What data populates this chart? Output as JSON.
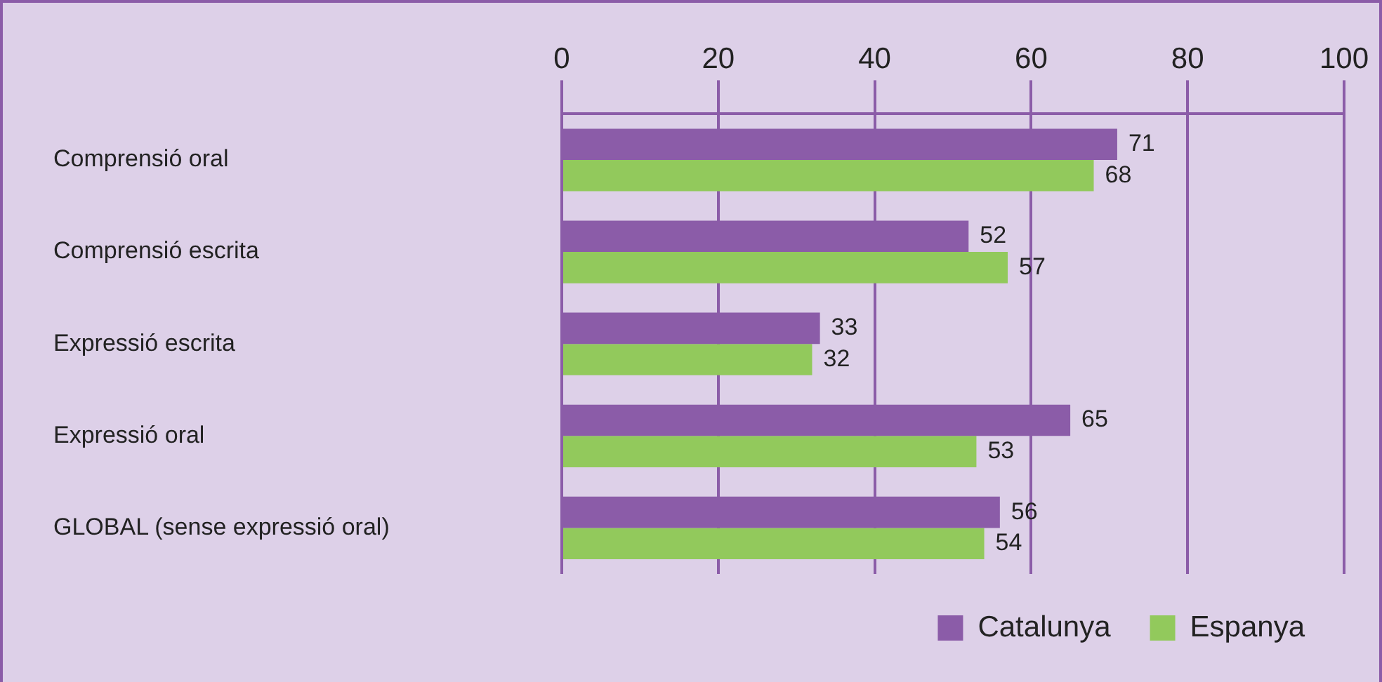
{
  "chart_data": {
    "type": "bar",
    "orientation": "horizontal",
    "categories": [
      "Comprensió oral",
      "Comprensió escrita",
      "Expressió escrita",
      "Expressió oral",
      "GLOBAL (sense expressió oral)"
    ],
    "series": [
      {
        "name": "Catalunya",
        "color": "#8b5ca8",
        "values": [
          71,
          52,
          33,
          65,
          56
        ]
      },
      {
        "name": "Espanya",
        "color": "#92c95c",
        "values": [
          68,
          57,
          32,
          53,
          54
        ]
      }
    ],
    "xlim": [
      0,
      100
    ],
    "xticks": [
      0,
      20,
      40,
      60,
      80,
      100
    ],
    "grid": "x",
    "legend": "bottom right",
    "data_labels": true
  }
}
